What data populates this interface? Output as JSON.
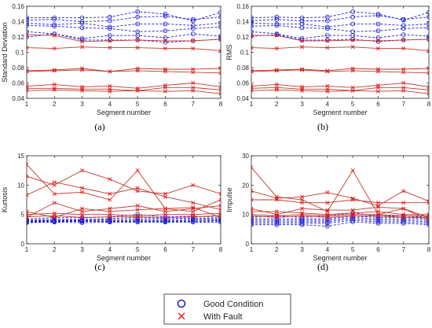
{
  "colors": {
    "good": "#1f1fd6",
    "fault": "#c0392b",
    "fault_marker": "#e41a1c",
    "axis": "#262626"
  },
  "legend": {
    "entries": [
      {
        "label": "Good Condition",
        "marker": "circle",
        "color": "#1f1fd6"
      },
      {
        "label": "With Fault",
        "marker": "x",
        "color": "#e41a1c"
      }
    ]
  },
  "chart_data": [
    {
      "type": "line",
      "caption": "(a)",
      "xlabel": "Segment number",
      "ylabel": "Standard Deviation",
      "x": [
        1,
        2,
        3,
        4,
        5,
        6,
        7,
        8
      ],
      "xlim": [
        1,
        8
      ],
      "ylim": [
        0.04,
        0.16
      ],
      "yticks": [
        0.04,
        0.06,
        0.08,
        0.1,
        0.12,
        0.14,
        0.16
      ],
      "ytick_labels": [
        "0.04",
        "0.06",
        "0.08",
        "0.1",
        "0.12",
        "0.14",
        "0.16"
      ],
      "grid": false,
      "series": [
        {
          "group": "good",
          "values": [
            0.145,
            0.145,
            0.145,
            0.146,
            0.153,
            0.15,
            0.141,
            0.152
          ]
        },
        {
          "group": "good",
          "values": [
            0.142,
            0.143,
            0.14,
            0.141,
            0.146,
            0.147,
            0.143,
            0.146
          ]
        },
        {
          "group": "good",
          "values": [
            0.138,
            0.136,
            0.138,
            0.133,
            0.137,
            0.137,
            0.135,
            0.138
          ]
        },
        {
          "group": "good",
          "values": [
            0.135,
            0.134,
            0.132,
            0.131,
            0.127,
            0.128,
            0.131,
            0.133
          ]
        },
        {
          "group": "good",
          "values": [
            0.127,
            0.124,
            0.118,
            0.122,
            0.122,
            0.119,
            0.124,
            0.121
          ]
        },
        {
          "group": "good",
          "values": [
            0.12,
            0.124,
            0.116,
            0.116,
            0.116,
            0.113,
            0.115,
            0.117
          ]
        },
        {
          "group": "fault",
          "values": [
            0.123,
            0.122,
            0.114,
            0.115,
            0.116,
            0.115,
            0.115,
            0.117
          ]
        },
        {
          "group": "fault",
          "values": [
            0.106,
            0.105,
            0.107,
            0.106,
            0.106,
            0.105,
            0.105,
            0.102
          ]
        },
        {
          "group": "fault",
          "values": [
            0.076,
            0.077,
            0.079,
            0.075,
            0.079,
            0.078,
            0.078,
            0.079
          ]
        },
        {
          "group": "fault",
          "values": [
            0.075,
            0.076,
            0.077,
            0.075,
            0.076,
            0.075,
            0.074,
            0.073
          ]
        },
        {
          "group": "fault",
          "values": [
            0.056,
            0.058,
            0.055,
            0.056,
            0.053,
            0.057,
            0.06,
            0.055
          ]
        },
        {
          "group": "fault",
          "values": [
            0.053,
            0.053,
            0.052,
            0.052,
            0.05,
            0.054,
            0.054,
            0.051
          ]
        },
        {
          "group": "fault",
          "values": [
            0.05,
            0.051,
            0.05,
            0.049,
            0.05,
            0.049,
            0.05,
            0.046
          ]
        }
      ]
    },
    {
      "type": "line",
      "caption": "(b)",
      "xlabel": "Segment number",
      "ylabel": "RMS",
      "x": [
        1,
        2,
        3,
        4,
        5,
        6,
        7,
        8
      ],
      "xlim": [
        1,
        8
      ],
      "ylim": [
        0.04,
        0.16
      ],
      "yticks": [
        0.04,
        0.06,
        0.08,
        0.1,
        0.12,
        0.14,
        0.16
      ],
      "ytick_labels": [
        "0.04",
        "0.06",
        "0.08",
        "0.1",
        "0.12",
        "0.14",
        "0.16"
      ],
      "grid": false,
      "series": [
        {
          "group": "good",
          "values": [
            0.145,
            0.146,
            0.145,
            0.146,
            0.153,
            0.15,
            0.142,
            0.152
          ]
        },
        {
          "group": "good",
          "values": [
            0.141,
            0.143,
            0.141,
            0.141,
            0.146,
            0.148,
            0.143,
            0.146
          ]
        },
        {
          "group": "good",
          "values": [
            0.138,
            0.137,
            0.137,
            0.133,
            0.137,
            0.137,
            0.135,
            0.137
          ]
        },
        {
          "group": "good",
          "values": [
            0.134,
            0.135,
            0.132,
            0.131,
            0.127,
            0.128,
            0.131,
            0.132
          ]
        },
        {
          "group": "good",
          "values": [
            0.127,
            0.124,
            0.118,
            0.122,
            0.122,
            0.119,
            0.123,
            0.121
          ]
        },
        {
          "group": "good",
          "values": [
            0.121,
            0.123,
            0.116,
            0.116,
            0.117,
            0.114,
            0.116,
            0.117
          ]
        },
        {
          "group": "fault",
          "values": [
            0.122,
            0.122,
            0.115,
            0.115,
            0.116,
            0.115,
            0.116,
            0.117
          ]
        },
        {
          "group": "fault",
          "values": [
            0.106,
            0.105,
            0.107,
            0.106,
            0.107,
            0.105,
            0.105,
            0.102
          ]
        },
        {
          "group": "fault",
          "values": [
            0.076,
            0.077,
            0.078,
            0.076,
            0.079,
            0.078,
            0.078,
            0.079
          ]
        },
        {
          "group": "fault",
          "values": [
            0.075,
            0.076,
            0.077,
            0.075,
            0.076,
            0.075,
            0.074,
            0.073
          ]
        },
        {
          "group": "fault",
          "values": [
            0.056,
            0.058,
            0.055,
            0.056,
            0.054,
            0.057,
            0.06,
            0.055
          ]
        },
        {
          "group": "fault",
          "values": [
            0.053,
            0.054,
            0.052,
            0.052,
            0.05,
            0.054,
            0.054,
            0.051
          ]
        },
        {
          "group": "fault",
          "values": [
            0.05,
            0.051,
            0.05,
            0.049,
            0.05,
            0.049,
            0.05,
            0.046
          ]
        }
      ]
    },
    {
      "type": "line",
      "caption": "(c)",
      "xlabel": "Segment number",
      "ylabel": "Kurtosis",
      "x": [
        1,
        2,
        3,
        4,
        5,
        6,
        7,
        8
      ],
      "xlim": [
        1,
        8
      ],
      "ylim": [
        0,
        15
      ],
      "yticks": [
        0,
        5,
        10,
        15
      ],
      "ytick_labels": [
        "0",
        "5",
        "10",
        "15"
      ],
      "grid": false,
      "series": [
        {
          "group": "good",
          "values": [
            4.2,
            4.5,
            4.4,
            4.6,
            5.0,
            4.6,
            4.7,
            4.5
          ]
        },
        {
          "group": "good",
          "values": [
            4.0,
            4.2,
            4.1,
            4.3,
            4.5,
            4.3,
            4.4,
            4.3
          ]
        },
        {
          "group": "good",
          "values": [
            3.9,
            4.0,
            4.0,
            4.1,
            4.2,
            4.1,
            4.2,
            4.1
          ]
        },
        {
          "group": "good",
          "values": [
            3.8,
            3.9,
            3.9,
            3.9,
            4.0,
            3.9,
            4.0,
            4.0
          ]
        },
        {
          "group": "good",
          "values": [
            3.7,
            3.8,
            3.8,
            3.8,
            3.8,
            3.8,
            3.8,
            3.9
          ]
        },
        {
          "group": "good",
          "values": [
            3.6,
            3.7,
            3.6,
            3.7,
            3.7,
            3.7,
            3.7,
            3.7
          ]
        },
        {
          "group": "fault",
          "values": [
            13.5,
            8.5,
            8.8,
            7.5,
            12.5,
            6.0,
            6.2,
            4.5
          ]
        },
        {
          "group": "fault",
          "values": [
            11.5,
            10.0,
            12.5,
            11.0,
            9.0,
            8.5,
            10.0,
            8.5
          ]
        },
        {
          "group": "fault",
          "values": [
            8.3,
            10.5,
            9.5,
            8.5,
            9.5,
            8.0,
            7.0,
            5.8
          ]
        },
        {
          "group": "fault",
          "values": [
            4.5,
            7.0,
            5.5,
            6.0,
            6.5,
            5.5,
            6.0,
            6.5
          ]
        },
        {
          "group": "fault",
          "values": [
            5.5,
            4.5,
            6.0,
            5.5,
            5.8,
            6.0,
            5.5,
            7.5
          ]
        },
        {
          "group": "fault",
          "values": [
            5.0,
            5.2,
            5.0,
            5.0,
            4.8,
            5.0,
            5.0,
            5.2
          ]
        },
        {
          "group": "fault",
          "values": [
            4.6,
            4.8,
            4.5,
            4.6,
            4.6,
            4.5,
            4.6,
            4.8
          ]
        }
      ]
    },
    {
      "type": "line",
      "caption": "(d)",
      "xlabel": "Segment number",
      "ylabel": "Impulse",
      "x": [
        1,
        2,
        3,
        4,
        5,
        6,
        7,
        8
      ],
      "xlim": [
        1,
        8
      ],
      "ylim": [
        0,
        30
      ],
      "yticks": [
        0,
        10,
        20,
        30
      ],
      "ytick_labels": [
        "0",
        "10",
        "20",
        "30"
      ],
      "grid": false,
      "series": [
        {
          "group": "good",
          "values": [
            9.0,
            9.5,
            9.0,
            9.5,
            10.5,
            9.5,
            9.5,
            9.0
          ]
        },
        {
          "group": "good",
          "values": [
            8.5,
            8.5,
            8.5,
            8.5,
            9.5,
            9.0,
            9.0,
            8.5
          ]
        },
        {
          "group": "good",
          "values": [
            8.0,
            8.0,
            8.0,
            8.0,
            9.0,
            8.5,
            8.5,
            8.0
          ]
        },
        {
          "group": "good",
          "values": [
            7.5,
            7.5,
            7.5,
            7.5,
            8.5,
            8.0,
            8.0,
            7.5
          ]
        },
        {
          "group": "good",
          "values": [
            7.0,
            7.0,
            7.0,
            7.0,
            8.0,
            7.5,
            7.5,
            7.0
          ]
        },
        {
          "group": "good",
          "values": [
            6.5,
            6.5,
            6.5,
            6.0,
            7.5,
            7.0,
            7.0,
            6.5
          ]
        },
        {
          "group": "fault",
          "values": [
            26.0,
            16.0,
            15.0,
            11.0,
            25.0,
            10.0,
            12.0,
            8.0
          ]
        },
        {
          "group": "fault",
          "values": [
            18.0,
            15.5,
            16.0,
            17.5,
            15.5,
            13.0,
            18.0,
            14.5
          ]
        },
        {
          "group": "fault",
          "values": [
            15.0,
            15.0,
            14.0,
            14.0,
            15.0,
            14.0,
            14.0,
            14.0
          ]
        },
        {
          "group": "fault",
          "values": [
            12.0,
            10.0,
            12.0,
            11.5,
            11.5,
            12.5,
            12.0,
            9.0
          ]
        },
        {
          "group": "fault",
          "values": [
            11.0,
            11.0,
            10.5,
            10.0,
            10.5,
            11.0,
            10.0,
            10.0
          ]
        },
        {
          "group": "fault",
          "values": [
            10.0,
            9.5,
            10.0,
            9.5,
            10.0,
            10.0,
            9.5,
            9.5
          ]
        },
        {
          "group": "fault",
          "values": [
            9.5,
            9.0,
            9.5,
            9.0,
            9.5,
            9.5,
            9.0,
            9.0
          ]
        }
      ]
    }
  ]
}
